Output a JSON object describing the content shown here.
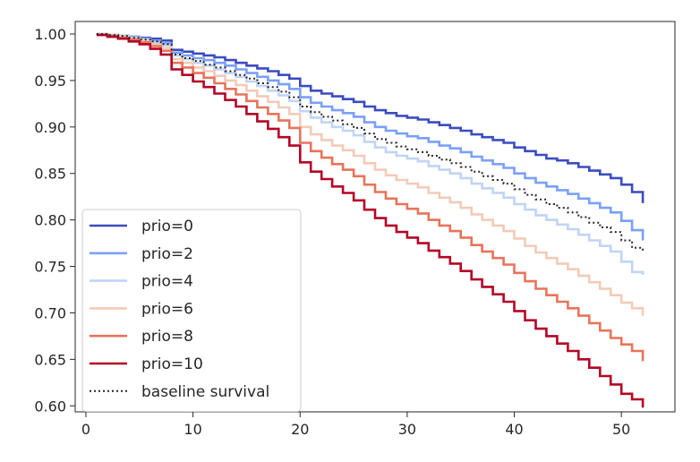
{
  "chart_data": {
    "type": "line",
    "title": "",
    "xlabel": "",
    "ylabel": "",
    "xlim": [
      -1,
      55
    ],
    "ylim": [
      0.5935,
      1.0135
    ],
    "xticks": [
      0,
      10,
      20,
      30,
      40,
      50
    ],
    "yticks": [
      0.6,
      0.65,
      0.7,
      0.75,
      0.8,
      0.85,
      0.9,
      0.95,
      1.0
    ],
    "xtick_labels": [
      "0",
      "10",
      "20",
      "30",
      "40",
      "50"
    ],
    "ytick_labels": [
      "0.60",
      "0.65",
      "0.70",
      "0.75",
      "0.80",
      "0.85",
      "0.90",
      "0.95",
      "1.00"
    ],
    "grid": false,
    "legend_position": "lower-left",
    "step": true,
    "series": [
      {
        "name": "prio=0",
        "color": "#3b4cc0",
        "style": "solid",
        "x": [
          1,
          2,
          3,
          4,
          5,
          6,
          7,
          8,
          9,
          10,
          11,
          12,
          13,
          14,
          15,
          16,
          17,
          18,
          19,
          20,
          21,
          22,
          23,
          24,
          25,
          26,
          27,
          28,
          29,
          30,
          31,
          32,
          33,
          34,
          35,
          36,
          37,
          38,
          39,
          40,
          41,
          42,
          43,
          44,
          45,
          46,
          47,
          48,
          49,
          50,
          51,
          52
        ],
        "y": [
          1.0,
          0.999,
          0.998,
          0.997,
          0.996,
          0.995,
          0.993,
          0.983,
          0.981,
          0.979,
          0.977,
          0.975,
          0.972,
          0.969,
          0.966,
          0.963,
          0.96,
          0.956,
          0.952,
          0.944,
          0.939,
          0.936,
          0.933,
          0.93,
          0.927,
          0.922,
          0.918,
          0.915,
          0.912,
          0.91,
          0.908,
          0.905,
          0.902,
          0.899,
          0.896,
          0.892,
          0.889,
          0.886,
          0.883,
          0.878,
          0.874,
          0.87,
          0.866,
          0.864,
          0.861,
          0.857,
          0.853,
          0.849,
          0.845,
          0.838,
          0.83,
          0.818
        ]
      },
      {
        "name": "prio=2",
        "color": "#7b9ff9",
        "style": "solid",
        "x": [
          1,
          2,
          3,
          4,
          5,
          6,
          7,
          8,
          9,
          10,
          11,
          12,
          13,
          14,
          15,
          16,
          17,
          18,
          19,
          20,
          21,
          22,
          23,
          24,
          25,
          26,
          27,
          28,
          29,
          30,
          31,
          32,
          33,
          34,
          35,
          36,
          37,
          38,
          39,
          40,
          41,
          42,
          43,
          44,
          45,
          46,
          47,
          48,
          49,
          50,
          51,
          52
        ],
        "y": [
          1.0,
          0.999,
          0.998,
          0.997,
          0.995,
          0.993,
          0.99,
          0.98,
          0.977,
          0.974,
          0.972,
          0.969,
          0.966,
          0.962,
          0.958,
          0.954,
          0.95,
          0.946,
          0.941,
          0.932,
          0.926,
          0.922,
          0.918,
          0.915,
          0.911,
          0.905,
          0.9,
          0.896,
          0.893,
          0.89,
          0.888,
          0.884,
          0.88,
          0.877,
          0.873,
          0.868,
          0.864,
          0.86,
          0.856,
          0.85,
          0.845,
          0.84,
          0.836,
          0.832,
          0.828,
          0.823,
          0.818,
          0.813,
          0.808,
          0.799,
          0.789,
          0.778
        ]
      },
      {
        "name": "prio=4",
        "color": "#c0d4f5",
        "style": "solid",
        "x": [
          1,
          2,
          3,
          4,
          5,
          6,
          7,
          8,
          9,
          10,
          11,
          12,
          13,
          14,
          15,
          16,
          17,
          18,
          19,
          20,
          21,
          22,
          23,
          24,
          25,
          26,
          27,
          28,
          29,
          30,
          31,
          32,
          33,
          34,
          35,
          36,
          37,
          38,
          39,
          40,
          41,
          42,
          43,
          44,
          45,
          46,
          47,
          48,
          49,
          50,
          51,
          52
        ],
        "y": [
          1.0,
          0.999,
          0.998,
          0.996,
          0.994,
          0.991,
          0.988,
          0.977,
          0.973,
          0.969,
          0.966,
          0.962,
          0.958,
          0.954,
          0.949,
          0.944,
          0.939,
          0.934,
          0.928,
          0.917,
          0.91,
          0.905,
          0.9,
          0.896,
          0.891,
          0.884,
          0.878,
          0.873,
          0.869,
          0.866,
          0.863,
          0.858,
          0.854,
          0.85,
          0.845,
          0.839,
          0.834,
          0.829,
          0.824,
          0.817,
          0.811,
          0.805,
          0.8,
          0.795,
          0.79,
          0.784,
          0.778,
          0.772,
          0.766,
          0.755,
          0.744,
          0.741
        ]
      },
      {
        "name": "prio=6",
        "color": "#f2cbb7",
        "style": "solid",
        "x": [
          1,
          2,
          3,
          4,
          5,
          6,
          7,
          8,
          9,
          10,
          11,
          12,
          13,
          14,
          15,
          16,
          17,
          18,
          19,
          20,
          21,
          22,
          23,
          24,
          25,
          26,
          27,
          28,
          29,
          30,
          31,
          32,
          33,
          34,
          35,
          36,
          37,
          38,
          39,
          40,
          41,
          42,
          43,
          44,
          45,
          46,
          47,
          48,
          49,
          50,
          51,
          52
        ],
        "y": [
          1.0,
          0.999,
          0.997,
          0.995,
          0.993,
          0.989,
          0.985,
          0.973,
          0.969,
          0.964,
          0.96,
          0.955,
          0.95,
          0.945,
          0.939,
          0.933,
          0.927,
          0.921,
          0.914,
          0.9,
          0.892,
          0.886,
          0.88,
          0.875,
          0.869,
          0.861,
          0.854,
          0.848,
          0.843,
          0.839,
          0.835,
          0.829,
          0.824,
          0.819,
          0.813,
          0.806,
          0.8,
          0.794,
          0.788,
          0.78,
          0.772,
          0.765,
          0.759,
          0.753,
          0.747,
          0.74,
          0.733,
          0.726,
          0.719,
          0.711,
          0.705,
          0.697
        ]
      },
      {
        "name": "prio=8",
        "color": "#e7745b",
        "style": "solid",
        "x": [
          1,
          2,
          3,
          4,
          5,
          6,
          7,
          8,
          9,
          10,
          11,
          12,
          13,
          14,
          15,
          16,
          17,
          18,
          19,
          20,
          21,
          22,
          23,
          24,
          25,
          26,
          27,
          28,
          29,
          30,
          31,
          32,
          33,
          34,
          35,
          36,
          37,
          38,
          39,
          40,
          41,
          42,
          43,
          44,
          45,
          46,
          47,
          48,
          49,
          50,
          51,
          52
        ],
        "y": [
          0.999,
          0.998,
          0.996,
          0.994,
          0.991,
          0.987,
          0.982,
          0.969,
          0.964,
          0.958,
          0.953,
          0.947,
          0.941,
          0.935,
          0.928,
          0.921,
          0.914,
          0.907,
          0.899,
          0.883,
          0.874,
          0.867,
          0.86,
          0.854,
          0.847,
          0.838,
          0.83,
          0.823,
          0.817,
          0.812,
          0.807,
          0.8,
          0.794,
          0.788,
          0.781,
          0.773,
          0.766,
          0.759,
          0.752,
          0.743,
          0.734,
          0.726,
          0.719,
          0.712,
          0.705,
          0.697,
          0.689,
          0.681,
          0.673,
          0.666,
          0.659,
          0.648
        ]
      },
      {
        "name": "prio=10",
        "color": "#b40426",
        "style": "solid",
        "x": [
          1,
          2,
          3,
          4,
          5,
          6,
          7,
          8,
          9,
          10,
          11,
          12,
          13,
          14,
          15,
          16,
          17,
          18,
          19,
          20,
          21,
          22,
          23,
          24,
          25,
          26,
          27,
          28,
          29,
          30,
          31,
          32,
          33,
          34,
          35,
          36,
          37,
          38,
          39,
          40,
          41,
          42,
          43,
          44,
          45,
          46,
          47,
          48,
          49,
          50,
          51,
          52
        ],
        "y": [
          0.999,
          0.997,
          0.995,
          0.992,
          0.989,
          0.984,
          0.978,
          0.962,
          0.956,
          0.949,
          0.943,
          0.936,
          0.929,
          0.922,
          0.914,
          0.906,
          0.898,
          0.889,
          0.88,
          0.862,
          0.852,
          0.844,
          0.836,
          0.829,
          0.821,
          0.811,
          0.802,
          0.794,
          0.787,
          0.781,
          0.775,
          0.767,
          0.76,
          0.753,
          0.745,
          0.736,
          0.728,
          0.72,
          0.712,
          0.702,
          0.692,
          0.683,
          0.675,
          0.667,
          0.659,
          0.65,
          0.641,
          0.632,
          0.623,
          0.613,
          0.607,
          0.598
        ]
      },
      {
        "name": "baseline survival",
        "color": "#262626",
        "style": "dotted",
        "x": [
          1,
          2,
          3,
          4,
          5,
          6,
          7,
          8,
          9,
          10,
          11,
          12,
          13,
          14,
          15,
          16,
          17,
          18,
          19,
          20,
          21,
          22,
          23,
          24,
          25,
          26,
          27,
          28,
          29,
          30,
          31,
          32,
          33,
          34,
          35,
          36,
          37,
          38,
          39,
          40,
          41,
          42,
          43,
          44,
          45,
          46,
          47,
          48,
          49,
          50,
          51,
          52
        ],
        "y": [
          1.0,
          0.999,
          0.998,
          0.996,
          0.994,
          0.992,
          0.989,
          0.978,
          0.974,
          0.971,
          0.967,
          0.964,
          0.96,
          0.956,
          0.952,
          0.947,
          0.943,
          0.938,
          0.932,
          0.922,
          0.916,
          0.911,
          0.907,
          0.903,
          0.899,
          0.893,
          0.887,
          0.883,
          0.879,
          0.876,
          0.873,
          0.869,
          0.865,
          0.861,
          0.857,
          0.852,
          0.847,
          0.843,
          0.839,
          0.833,
          0.827,
          0.822,
          0.817,
          0.813,
          0.808,
          0.803,
          0.797,
          0.792,
          0.787,
          0.778,
          0.77,
          0.766
        ]
      }
    ]
  }
}
